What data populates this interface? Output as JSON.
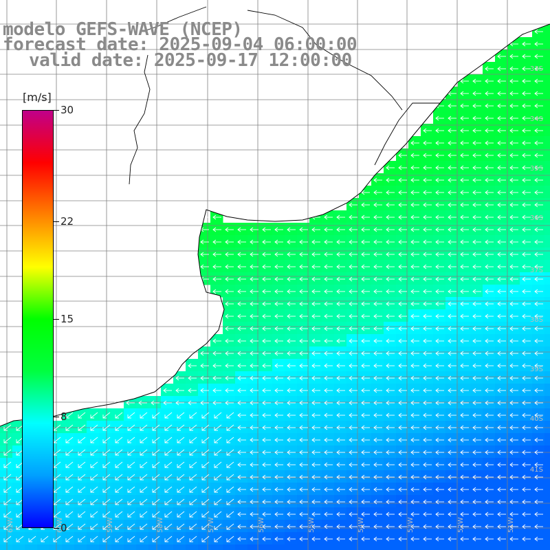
{
  "title": {
    "line1": "modelo GEFS-WAVE (NCEP)",
    "line2": "forecast date: 2025-09-04 06:00:00",
    "line3": "valid date: 2025-09-17 12:00:00"
  },
  "colorbar": {
    "unit": "[m/s]",
    "min": 0,
    "max": 30,
    "ticks": [
      "30",
      "22",
      "15",
      "8",
      "0"
    ],
    "tick_values": [
      30,
      22,
      15,
      8,
      0
    ],
    "colors": [
      "#0000ff",
      "#00a0ff",
      "#00ffff",
      "#00ff40",
      "#00ff00",
      "#ffff00",
      "#ff8000",
      "#ff0000",
      "#c0008a"
    ]
  },
  "map": {
    "lat_labels": [
      "33S",
      "34S",
      "35S",
      "36S",
      "37S",
      "38S",
      "39S",
      "40S",
      "41S"
    ],
    "lon_labels": [
      "61W",
      "60W",
      "59W",
      "58W",
      "57W",
      "56W",
      "55W",
      "54W",
      "53W",
      "52W",
      "51W"
    ],
    "land_color": "#ffffff",
    "coast_color": "#000000",
    "grid_color": "#808080"
  }
}
